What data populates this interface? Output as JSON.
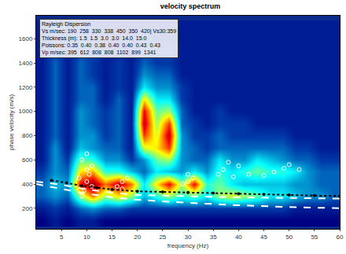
{
  "chart_data": {
    "type": "heatmap",
    "title": "velocity spectrum",
    "x_label": "frequency (Hz)",
    "y_label": "phase velocity (m/s)",
    "xlim": [
      0,
      60
    ],
    "ylim": [
      30,
      1790
    ],
    "xticks": [
      5,
      10,
      15,
      20,
      25,
      30,
      35,
      40,
      45,
      50,
      55,
      60
    ],
    "yticks": [
      200,
      400,
      600,
      800,
      1000,
      1200,
      1400,
      1600
    ],
    "color": "Jet",
    "tick_labels": true,
    "annotations": [
      "Rayleigh Dispersion",
      "Vs m/sec: 190  258  330  338  450  350  420| Vs30:359",
      "Thickness (m): 1.5  1.5  3.0  3.0  14.0  15.0",
      "Poissons: 0.35  0.40  0.38  0.40  0.40  0.43  0.43",
      "Vp m/sec: 395  612  808  808  1102  899  1341"
    ],
    "heatmap": {
      "x": [
        1.25,
        3.75,
        6.25,
        8.75,
        11.25,
        13.75,
        16.25,
        18.75,
        21.25,
        23.75,
        26.25,
        28.75,
        31.25,
        33.75,
        36.25,
        38.75,
        41.25,
        43.75,
        46.25,
        48.75,
        51.25,
        53.75,
        56.25,
        58.75
      ],
      "y": [
        100,
        200,
        300,
        400,
        500,
        600,
        700,
        800,
        900,
        1000,
        1100,
        1200,
        1300,
        1400,
        1500,
        1600,
        1700
      ],
      "z": [
        [
          0.15,
          0.2,
          0.15,
          0.2,
          0.2,
          0.15,
          0.15,
          0.15,
          0.15,
          0.15,
          0.15,
          0.15,
          0.15,
          0.15,
          0.15,
          0.15,
          0.15,
          0.15,
          0.15,
          0.15,
          0.15,
          0.15,
          0.15,
          0.15
        ],
        [
          0.2,
          0.25,
          0.2,
          0.3,
          0.35,
          0.3,
          0.3,
          0.25,
          0.25,
          0.25,
          0.25,
          0.25,
          0.25,
          0.25,
          0.25,
          0.25,
          0.25,
          0.25,
          0.25,
          0.25,
          0.2,
          0.2,
          0.2,
          0.2
        ],
        [
          0.3,
          0.35,
          0.3,
          0.6,
          0.8,
          0.6,
          0.7,
          0.6,
          0.4,
          0.5,
          0.6,
          0.5,
          0.55,
          0.45,
          0.6,
          0.65,
          0.6,
          0.55,
          0.45,
          0.45,
          0.4,
          0.35,
          0.35,
          0.3
        ],
        [
          0.3,
          0.4,
          0.35,
          0.9,
          1.0,
          0.8,
          0.95,
          0.8,
          0.45,
          0.7,
          0.9,
          0.6,
          0.9,
          0.5,
          0.55,
          0.45,
          0.4,
          0.4,
          0.4,
          0.4,
          0.35,
          0.35,
          0.3,
          0.3
        ],
        [
          0.25,
          0.35,
          0.3,
          0.7,
          0.75,
          0.5,
          0.5,
          0.4,
          0.3,
          0.45,
          0.4,
          0.35,
          0.45,
          0.35,
          0.5,
          0.45,
          0.5,
          0.55,
          0.5,
          0.5,
          0.45,
          0.35,
          0.3,
          0.3
        ],
        [
          0.2,
          0.35,
          0.25,
          0.55,
          0.5,
          0.35,
          0.35,
          0.25,
          0.35,
          0.55,
          0.6,
          0.35,
          0.3,
          0.3,
          0.45,
          0.35,
          0.35,
          0.45,
          0.4,
          0.35,
          0.3,
          0.3,
          0.25,
          0.25
        ],
        [
          0.2,
          0.35,
          0.2,
          0.4,
          0.35,
          0.3,
          0.3,
          0.2,
          0.65,
          0.7,
          0.85,
          0.35,
          0.3,
          0.25,
          0.3,
          0.3,
          0.3,
          0.3,
          0.3,
          0.3,
          0.25,
          0.25,
          0.2,
          0.2
        ],
        [
          0.2,
          0.3,
          0.2,
          0.35,
          0.35,
          0.25,
          0.3,
          0.2,
          0.85,
          0.65,
          0.95,
          0.35,
          0.25,
          0.25,
          0.3,
          0.25,
          0.25,
          0.25,
          0.25,
          0.25,
          0.2,
          0.2,
          0.2,
          0.2
        ],
        [
          0.2,
          0.3,
          0.2,
          0.35,
          0.3,
          0.25,
          0.3,
          0.2,
          0.95,
          0.6,
          0.85,
          0.3,
          0.25,
          0.2,
          0.25,
          0.25,
          0.25,
          0.2,
          0.2,
          0.2,
          0.2,
          0.2,
          0.2,
          0.2
        ],
        [
          0.2,
          0.3,
          0.2,
          0.35,
          0.3,
          0.25,
          0.3,
          0.2,
          0.9,
          0.55,
          0.6,
          0.3,
          0.2,
          0.2,
          0.25,
          0.2,
          0.2,
          0.2,
          0.2,
          0.2,
          0.2,
          0.2,
          0.2,
          0.2
        ],
        [
          0.2,
          0.3,
          0.2,
          0.3,
          0.3,
          0.2,
          0.3,
          0.2,
          0.7,
          0.45,
          0.45,
          0.25,
          0.2,
          0.2,
          0.2,
          0.2,
          0.2,
          0.2,
          0.2,
          0.2,
          0.2,
          0.2,
          0.2,
          0.2
        ],
        [
          0.2,
          0.3,
          0.2,
          0.3,
          0.3,
          0.2,
          0.25,
          0.2,
          0.45,
          0.35,
          0.35,
          0.25,
          0.2,
          0.2,
          0.2,
          0.2,
          0.2,
          0.2,
          0.2,
          0.2,
          0.2,
          0.2,
          0.2,
          0.2
        ],
        [
          0.2,
          0.3,
          0.2,
          0.3,
          0.25,
          0.2,
          0.25,
          0.2,
          0.35,
          0.3,
          0.3,
          0.2,
          0.2,
          0.2,
          0.2,
          0.2,
          0.2,
          0.2,
          0.2,
          0.2,
          0.2,
          0.2,
          0.2,
          0.2
        ],
        [
          0.2,
          0.3,
          0.2,
          0.3,
          0.25,
          0.2,
          0.25,
          0.2,
          0.3,
          0.25,
          0.25,
          0.2,
          0.2,
          0.2,
          0.2,
          0.2,
          0.2,
          0.2,
          0.2,
          0.2,
          0.2,
          0.2,
          0.2,
          0.2
        ],
        [
          0.2,
          0.25,
          0.2,
          0.25,
          0.25,
          0.2,
          0.2,
          0.2,
          0.25,
          0.25,
          0.25,
          0.2,
          0.2,
          0.2,
          0.2,
          0.2,
          0.2,
          0.2,
          0.2,
          0.2,
          0.2,
          0.2,
          0.2,
          0.2
        ],
        [
          0.2,
          0.25,
          0.2,
          0.25,
          0.2,
          0.2,
          0.2,
          0.2,
          0.25,
          0.2,
          0.2,
          0.2,
          0.2,
          0.2,
          0.2,
          0.2,
          0.2,
          0.2,
          0.2,
          0.2,
          0.2,
          0.2,
          0.2,
          0.2
        ],
        [
          0.2,
          0.25,
          0.2,
          0.25,
          0.2,
          0.2,
          0.2,
          0.2,
          0.2,
          0.2,
          0.2,
          0.2,
          0.2,
          0.2,
          0.2,
          0.2,
          0.2,
          0.2,
          0.2,
          0.2,
          0.2,
          0.2,
          0.2,
          0.2
        ]
      ]
    },
    "series": [
      {
        "type": "scatter",
        "color": "#ffffff",
        "marker": "circle-open",
        "x": [
          9,
          9.5,
          10,
          10.5,
          11,
          9,
          10,
          11,
          8.5,
          10,
          16,
          17,
          18,
          17,
          29,
          30,
          31,
          30,
          37,
          38,
          40,
          42,
          45,
          47,
          49,
          50,
          52,
          36,
          39
        ],
        "values": [
          300,
          350,
          420,
          480,
          550,
          600,
          520,
          380,
          450,
          650,
          380,
          420,
          450,
          360,
          400,
          420,
          450,
          480,
          520,
          580,
          550,
          480,
          470,
          500,
          530,
          560,
          520,
          480,
          460
        ]
      },
      {
        "type": "line",
        "color": "#ffffff",
        "line_style": "dashed",
        "x": [
          0,
          5,
          10,
          15,
          20,
          30,
          40,
          50,
          60
        ],
        "values": [
          420,
          395,
          355,
          330,
          310,
          300,
          290,
          285,
          280
        ]
      },
      {
        "type": "line",
        "color": "#ffffff",
        "line_style": "dashed",
        "x": [
          0,
          5,
          10,
          15,
          20,
          30,
          40,
          50,
          60
        ],
        "values": [
          400,
          360,
          320,
          290,
          270,
          245,
          225,
          210,
          200
        ]
      },
      {
        "type": "line",
        "color": "#000000",
        "line_style": "dotted",
        "marker": "circle",
        "x": [
          3,
          6,
          9,
          12,
          15,
          20,
          25,
          30,
          35,
          40,
          45,
          50,
          55,
          60
        ],
        "values": [
          430,
          410,
          385,
          370,
          355,
          340,
          335,
          330,
          325,
          320,
          315,
          310,
          305,
          300
        ]
      }
    ]
  }
}
